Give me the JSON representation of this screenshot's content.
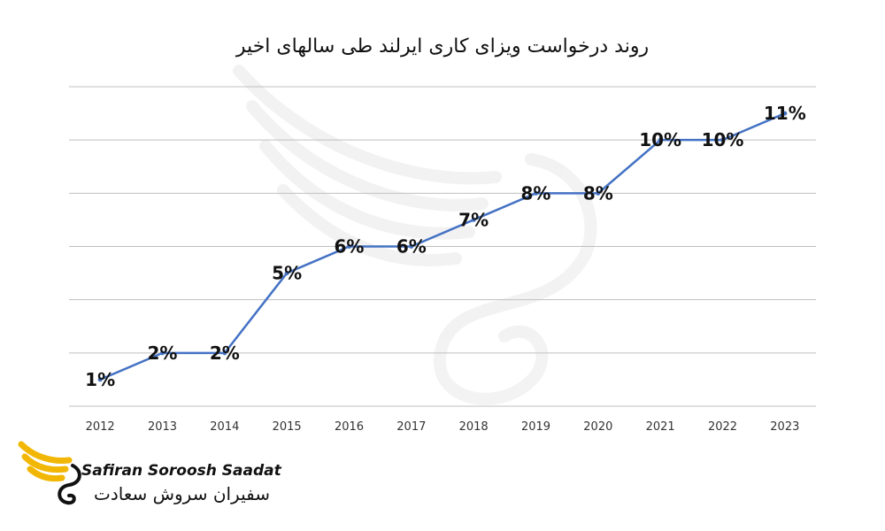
{
  "chart_data": {
    "type": "line",
    "title": "روند درخواست ویزای کاری ایرلند طی سالهای اخیر",
    "xlabel": "",
    "ylabel": "",
    "categories": [
      "2012",
      "2013",
      "2014",
      "2015",
      "2016",
      "2017",
      "2018",
      "2019",
      "2020",
      "2021",
      "2022",
      "2023"
    ],
    "series": [
      {
        "values": [
          1,
          2,
          2,
          5,
          6,
          6,
          7,
          8,
          8,
          10,
          10,
          11
        ]
      }
    ],
    "data_labels": [
      "1%",
      "2%",
      "2%",
      "5%",
      "6%",
      "6%",
      "7%",
      "8%",
      "8%",
      "10%",
      "10%",
      "11%"
    ],
    "ylim": [
      0,
      12
    ],
    "grid": true,
    "colors": {
      "line": "#4472C4",
      "grid": "#BFBFBF",
      "label": "#111111"
    }
  },
  "logo": {
    "name_en": "Safiran Soroosh Saadat",
    "name_fa": "سفیران سروش سعادت",
    "colors": {
      "wing": "#F2B705",
      "mark": "#111111"
    }
  }
}
